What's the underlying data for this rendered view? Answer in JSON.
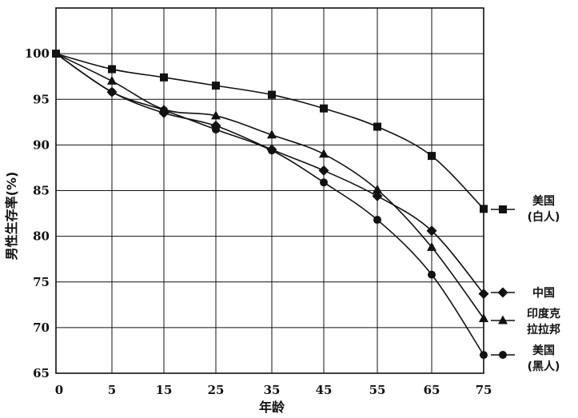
{
  "chart_data": {
    "type": "line",
    "xlabel": "年龄",
    "ylabel": "男性生存率(%)",
    "x": [
      0,
      5,
      15,
      25,
      35,
      45,
      55,
      65,
      75
    ],
    "xticks": [
      "0",
      "5",
      "15",
      "25",
      "35",
      "45",
      "55",
      "65",
      "75"
    ],
    "yticks": [
      "65",
      "70",
      "75",
      "80",
      "85",
      "90",
      "95",
      "100"
    ],
    "ylim": [
      65,
      105
    ],
    "grid": true,
    "legend_position": "right",
    "series": [
      {
        "name": "美国(白人)",
        "legend_lines": [
          "美国",
          "(白人)"
        ],
        "marker": "square",
        "values": [
          100,
          98.3,
          97.4,
          96.5,
          95.5,
          94.0,
          92.0,
          88.8,
          83.0
        ]
      },
      {
        "name": "中国",
        "legend_lines": [
          "中国"
        ],
        "marker": "diamond",
        "values": [
          100,
          95.8,
          93.5,
          92.1,
          89.5,
          87.2,
          84.4,
          80.6,
          73.7
        ]
      },
      {
        "name": "印度克拉拉邦",
        "legend_lines": [
          "印度克",
          "拉拉邦"
        ],
        "marker": "triangle",
        "values": [
          100,
          97.0,
          93.9,
          93.2,
          91.1,
          89.0,
          85.1,
          78.8,
          71.0
        ]
      },
      {
        "name": "美国(黑人)",
        "legend_lines": [
          "美国",
          "(黑人)"
        ],
        "marker": "circle",
        "values": [
          100,
          95.8,
          93.8,
          91.7,
          89.4,
          85.9,
          81.8,
          75.8,
          67.0
        ]
      }
    ]
  }
}
